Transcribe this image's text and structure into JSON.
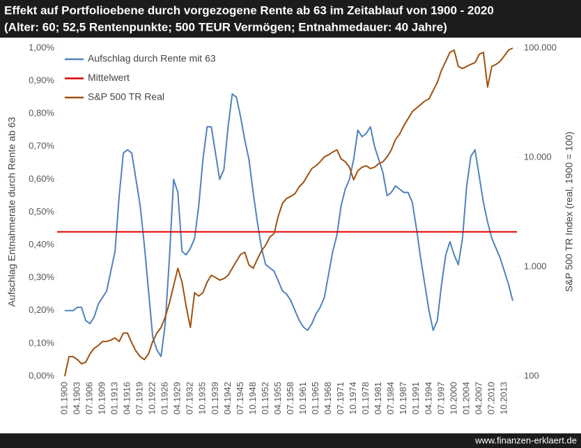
{
  "chart_data": {
    "type": "line",
    "title": "Effekt auf Portfolioebene durch vorgezogene Rente ab 63 im Zeitablauf von 1900 - 2020",
    "subtitle": "(Alter: 60; 52,5 Rentenpunkte; 500 TEUR Vermögen; Entnahmedauer: 40 Jahre)",
    "footer": "www.finanzen-erklaert.de",
    "y_label": "Aufschlag Entnahmerate durch Rente ab 63",
    "y2_label": "S&P 500 TR Index (real, 1900 = 100)",
    "categories": [
      "01.1900",
      null,
      null,
      "04.1903",
      null,
      null,
      "07.1906",
      null,
      null,
      "10.1909",
      null,
      null,
      "01.1913",
      null,
      null,
      "04.1916",
      null,
      null,
      "07.1919",
      null,
      null,
      "10.1922",
      null,
      null,
      "01.1926",
      null,
      null,
      "04.1929",
      null,
      null,
      "07.1932",
      null,
      null,
      "10.1935",
      null,
      null,
      "01.1939",
      null,
      null,
      "04.1942",
      null,
      null,
      "07.1945",
      null,
      null,
      "10.1948",
      null,
      null,
      "01.1952",
      null,
      null,
      "04.1955",
      null,
      null,
      "07.1958",
      null,
      null,
      "10.1961",
      null,
      null,
      "01.1965",
      null,
      null,
      "04.1968",
      null,
      null,
      "07.1971",
      null,
      null,
      "10.1974",
      null,
      null,
      "01.1978",
      null,
      null,
      "04.1981",
      null,
      null,
      "07.1984",
      null,
      null,
      "10.1987",
      null,
      null,
      "01.1991",
      null,
      null,
      "04.1994",
      null,
      null,
      "07.1997",
      null,
      null,
      "10.2000",
      null,
      null,
      "01.2004",
      null,
      null,
      "04.2007",
      null,
      null,
      "07.2010",
      null,
      null,
      "10.2013",
      null,
      null
    ],
    "ylim": [
      0,
      1
    ],
    "yticks": [
      {
        "value": 0,
        "label": "0,00%"
      },
      {
        "value": 0.1,
        "label": "0,10%"
      },
      {
        "value": 0.2,
        "label": "0,20%"
      },
      {
        "value": 0.3,
        "label": "0,30%"
      },
      {
        "value": 0.4,
        "label": "0,40%"
      },
      {
        "value": 0.5,
        "label": "0,50%"
      },
      {
        "value": 0.6,
        "label": "0,60%"
      },
      {
        "value": 0.7,
        "label": "0,70%"
      },
      {
        "value": 0.8,
        "label": "0,80%"
      },
      {
        "value": 0.9,
        "label": "0,90%"
      },
      {
        "value": 1,
        "label": "1,00%"
      }
    ],
    "y2lim": [
      100,
      100000
    ],
    "y2log": true,
    "y2ticks": [
      100,
      {
        "value": 1000,
        "label": "1.000"
      },
      {
        "value": 10000,
        "label": "10.000"
      },
      {
        "value": 100000,
        "label": "100.000"
      }
    ],
    "grid": false,
    "legend": "top-left",
    "series": [
      {
        "name": "Aufschlag durch Rente mit 63",
        "color": "#4f81bd",
        "values": [
          0.2,
          0.2,
          0.2,
          0.21,
          0.21,
          0.17,
          0.16,
          0.18,
          0.22,
          0.24,
          0.26,
          0.32,
          0.38,
          0.55,
          0.68,
          0.69,
          0.68,
          0.6,
          0.52,
          0.4,
          0.26,
          0.12,
          0.08,
          0.06,
          0.16,
          0.36,
          0.6,
          0.56,
          0.38,
          0.37,
          0.39,
          0.42,
          0.52,
          0.66,
          0.76,
          0.76,
          0.68,
          0.6,
          0.63,
          0.76,
          0.86,
          0.85,
          0.79,
          0.72,
          0.66,
          0.56,
          0.47,
          0.39,
          0.34,
          0.33,
          0.32,
          0.29,
          0.26,
          0.25,
          0.23,
          0.2,
          0.17,
          0.15,
          0.14,
          0.16,
          0.19,
          0.21,
          0.24,
          0.31,
          0.38,
          0.43,
          0.52,
          0.57,
          0.6,
          0.66,
          0.75,
          0.73,
          0.74,
          0.76,
          0.7,
          0.66,
          0.62,
          0.55,
          0.56,
          0.58,
          0.57,
          0.56,
          0.56,
          0.53,
          0.45,
          0.36,
          0.28,
          0.2,
          0.14,
          0.17,
          0.28,
          0.37,
          0.41,
          0.37,
          0.34,
          0.42,
          0.58,
          0.67,
          0.69,
          0.61,
          0.53,
          0.47,
          0.42,
          0.39,
          0.36,
          0.32,
          0.28,
          0.23
        ]
      },
      {
        "name": "Mittelwert",
        "color": "#e00000",
        "value": 0.44
      },
      {
        "name": "S&P 500 TR Real",
        "color": "#a0500e",
        "axis": "y2",
        "values": [
          100,
          151,
          151,
          142,
          130,
          134,
          160,
          180,
          191,
          208,
          208,
          214,
          224,
          208,
          248,
          248,
          202,
          170,
          151,
          142,
          160,
          208,
          248,
          279,
          348,
          466,
          672,
          970,
          725,
          433,
          279,
          580,
          541,
          580,
          725,
          837,
          801,
          757,
          780,
          837,
          970,
          1126,
          1300,
          1360,
          1040,
          970,
          1175,
          1400,
          1580,
          1880,
          2020,
          2920,
          3810,
          4220,
          4410,
          4670,
          5400,
          5900,
          6840,
          7920,
          8400,
          9150,
          10120,
          10580,
          11200,
          11740,
          9700,
          9150,
          8150,
          6250,
          7560,
          8150,
          8400,
          7920,
          8150,
          8760,
          9150,
          10120,
          11740,
          14580,
          16400,
          19580,
          22640,
          26200,
          28300,
          30400,
          32800,
          34300,
          40800,
          48600,
          63000,
          75800,
          91400,
          95800,
          68000,
          65000,
          68000,
          71000,
          73700,
          87600,
          91400,
          44000,
          68000,
          71000,
          75800,
          85000,
          95800,
          100000
        ]
      }
    ]
  }
}
